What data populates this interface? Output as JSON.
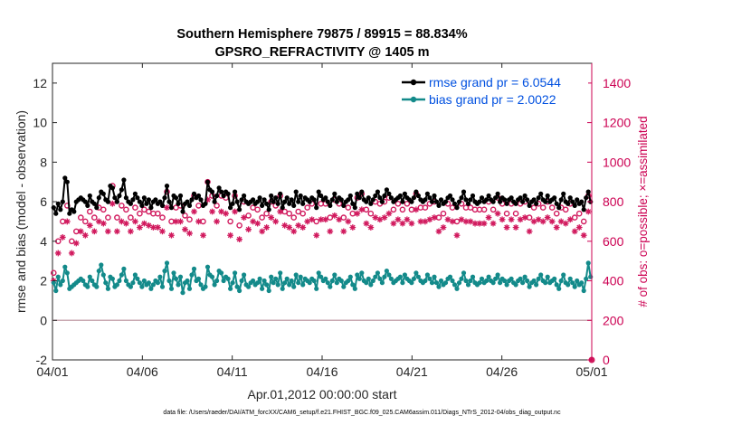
{
  "chart_data": {
    "type": "line",
    "title": "Southern Hemisphere 79875 / 89915 = 88.834%",
    "subtitle": "GPSRO_REFRACTIVITY @ 1405 m",
    "xlabel": "Apr.01,2012 00:00:00 start",
    "ylabel": "rmse and bias (model - observation)",
    "y2label": "# of obs: o=possible; ×=assimilated",
    "footnote": "data file: /Users/raeder/DAI/ATM_forcXX/CAM6_setup/f.e21.FHIST_BGC.f09_025.CAM6assim.011/Diags_NTrS_2012-04/obs_diag_output.nc",
    "xlim": [
      0,
      30
    ],
    "ylim": [
      -2,
      13
    ],
    "y2lim": [
      0,
      1500
    ],
    "x_tick_values": [
      0,
      5,
      10,
      15,
      20,
      25,
      30
    ],
    "x_tick_labels": [
      "04/01",
      "04/06",
      "04/11",
      "04/16",
      "04/21",
      "04/26",
      "05/01"
    ],
    "y_ticks": [
      -2,
      0,
      2,
      4,
      6,
      8,
      10,
      12
    ],
    "y2_ticks": [
      0,
      200,
      400,
      600,
      800,
      1000,
      1200,
      1400
    ],
    "zero_line": 0,
    "colors": {
      "rmse": "#000000",
      "bias": "#138a8a",
      "obs": "#d11a5e",
      "zero": "#c8a8b0",
      "legend_text": "#0050e0",
      "right_axis": "#cc0052"
    },
    "legend": [
      {
        "label": "rmse grand pr = 6.0544",
        "color": "#000000"
      },
      {
        "label": "bias grand pr = 2.0022",
        "color": "#138a8a"
      }
    ],
    "series": [
      {
        "name": "rmse",
        "axis": "left",
        "values": [
          5.7,
          5.4,
          5.9,
          5.6,
          6.0,
          7.2,
          7.0,
          5.4,
          5.6,
          5.5,
          6.0,
          6.1,
          6.2,
          6.1,
          6.0,
          5.8,
          6.3,
          6.0,
          5.9,
          5.7,
          6.2,
          6.5,
          6.4,
          6.1,
          6.0,
          6.8,
          6.7,
          6.2,
          6.0,
          6.3,
          6.6,
          7.1,
          6.2,
          6.0,
          5.9,
          6.1,
          6.4,
          6.2,
          6.0,
          5.8,
          6.2,
          5.9,
          6.1,
          5.7,
          6.0,
          6.1,
          5.9,
          6.0,
          5.8,
          6.2,
          6.8,
          6.0,
          5.7,
          6.3,
          6.2,
          5.9,
          6.3,
          5.5,
          5.9,
          6.0,
          5.8,
          6.1,
          6.4,
          6.2,
          6.3,
          6.1,
          5.8,
          5.9,
          7.0,
          6.6,
          6.5,
          6.0,
          6.3,
          6.7,
          6.5,
          6.3,
          6.5,
          6.4,
          5.7,
          5.9,
          6.5,
          6.0,
          5.6,
          6.1,
          6.3,
          6.0,
          5.9,
          6.0,
          6.1,
          5.9,
          6.0,
          6.2,
          5.8,
          6.1,
          5.9,
          5.6,
          6.3,
          6.0,
          6.2,
          5.9,
          6.4,
          5.7,
          6.0,
          6.2,
          5.9,
          6.1,
          5.8,
          6.5,
          6.0,
          6.3,
          5.9,
          6.2,
          6.1,
          6.0,
          6.2,
          6.1,
          5.7,
          6.5,
          6.3,
          6.1,
          6.2,
          6.0,
          5.8,
          6.1,
          6.4,
          6.0,
          6.2,
          6.1,
          5.8,
          6.0,
          6.1,
          6.3,
          5.9,
          5.7,
          6.4,
          6.2,
          6.5,
          6.1,
          6.0,
          6.2,
          5.9,
          6.1,
          6.3,
          6.5,
          6.2,
          6.0,
          6.3,
          6.6,
          6.4,
          6.2,
          6.0,
          6.1,
          6.2,
          6.3,
          6.0,
          6.4,
          6.2,
          6.1,
          6.0,
          6.2,
          6.5,
          6.3,
          6.1,
          6.0,
          6.1,
          6.4,
          6.2,
          6.0,
          6.3,
          6.0,
          5.8,
          6.1,
          5.9,
          6.0,
          6.2,
          6.3,
          6.1,
          5.9,
          5.7,
          6.0,
          6.2,
          6.5,
          6.1,
          5.9,
          6.1,
          6.3,
          6.0,
          5.9,
          6.0,
          6.2,
          6.0,
          6.1,
          6.3,
          6.1,
          6.0,
          6.2,
          6.4,
          6.0,
          6.2,
          6.1,
          5.9,
          6.1,
          6.2,
          6.0,
          5.9,
          6.1,
          6.2,
          6.0,
          6.3,
          6.1,
          5.8,
          6.0,
          6.1,
          5.9,
          6.2,
          6.4,
          6.1,
          6.0,
          6.3,
          6.0,
          6.1,
          6.2,
          5.9,
          5.7,
          6.1,
          6.4,
          6.0,
          5.9,
          6.2,
          6.0,
          5.8,
          6.1,
          5.9,
          6.0,
          5.6,
          6.2,
          6.5,
          6.0
        ]
      },
      {
        "name": "bias",
        "axis": "left",
        "values": [
          1.9,
          1.5,
          2.2,
          1.8,
          2.0,
          2.7,
          2.4,
          1.6,
          1.7,
          1.8,
          1.9,
          2.0,
          2.1,
          2.0,
          1.8,
          1.7,
          2.2,
          2.0,
          1.8,
          1.7,
          2.5,
          2.8,
          2.3,
          1.9,
          1.6,
          2.2,
          2.1,
          1.7,
          1.8,
          2.0,
          2.3,
          2.6,
          2.0,
          1.8,
          1.7,
          1.9,
          2.3,
          2.1,
          1.9,
          1.7,
          2.0,
          1.8,
          1.9,
          1.6,
          1.8,
          2.0,
          1.9,
          2.2,
          1.7,
          2.5,
          2.9,
          2.0,
          1.6,
          2.4,
          2.1,
          1.8,
          2.2,
          1.4,
          1.9,
          2.0,
          1.6,
          2.3,
          2.6,
          2.0,
          2.1,
          1.8,
          1.6,
          1.7,
          2.7,
          2.3,
          2.2,
          1.8,
          2.0,
          2.5,
          2.4,
          2.0,
          2.2,
          2.1,
          1.6,
          1.9,
          2.4,
          1.7,
          1.5,
          2.0,
          2.3,
          1.8,
          1.7,
          1.9,
          2.0,
          1.8,
          1.9,
          2.1,
          1.6,
          2.0,
          1.8,
          1.5,
          2.2,
          1.9,
          2.1,
          1.8,
          2.4,
          1.6,
          1.9,
          2.1,
          1.8,
          2.0,
          1.7,
          2.3,
          1.9,
          2.2,
          1.8,
          2.1,
          2.0,
          1.9,
          2.1,
          2.0,
          1.6,
          2.4,
          2.2,
          2.0,
          2.1,
          1.9,
          1.7,
          2.0,
          2.3,
          1.9,
          2.1,
          2.0,
          1.7,
          1.9,
          2.0,
          2.2,
          1.8,
          1.6,
          2.3,
          2.1,
          2.4,
          2.0,
          1.9,
          2.1,
          1.8,
          2.0,
          2.2,
          2.4,
          2.1,
          1.9,
          2.2,
          2.5,
          2.3,
          2.1,
          1.9,
          2.0,
          2.1,
          2.2,
          1.9,
          2.3,
          2.1,
          2.0,
          1.9,
          2.1,
          2.4,
          2.2,
          2.0,
          1.9,
          2.0,
          2.3,
          2.1,
          1.9,
          2.2,
          1.9,
          1.7,
          2.0,
          1.8,
          1.9,
          2.1,
          2.2,
          2.0,
          1.8,
          1.6,
          1.9,
          2.1,
          2.4,
          2.0,
          1.8,
          2.0,
          2.2,
          1.9,
          1.8,
          1.9,
          2.1,
          1.9,
          2.0,
          2.2,
          2.0,
          1.9,
          2.1,
          2.3,
          1.9,
          2.1,
          2.0,
          1.8,
          2.0,
          2.1,
          1.9,
          1.8,
          2.0,
          2.1,
          1.9,
          2.2,
          2.0,
          1.7,
          1.9,
          2.0,
          1.8,
          2.1,
          2.3,
          2.0,
          1.9,
          2.2,
          1.9,
          2.0,
          2.1,
          1.8,
          1.6,
          2.0,
          2.3,
          1.9,
          1.8,
          2.1,
          1.9,
          1.7,
          2.0,
          1.8,
          1.9,
          1.5,
          2.1,
          2.9,
          2.2
        ]
      },
      {
        "name": "obs possible",
        "axis": "right",
        "marker": "o",
        "values": [
          440,
          510,
          600,
          640,
          700,
          810,
          780,
          520,
          600,
          620,
          650,
          700,
          720,
          740,
          700,
          680,
          750,
          730,
          720,
          700,
          770,
          790,
          760,
          740,
          720,
          930,
          880,
          700,
          720,
          740,
          780,
          860,
          760,
          730,
          720,
          740,
          770,
          760,
          740,
          720,
          760,
          730,
          750,
          710,
          740,
          760,
          740,
          760,
          720,
          800,
          850,
          760,
          700,
          790,
          770,
          740,
          780,
          680,
          730,
          750,
          710,
          770,
          830,
          770,
          780,
          740,
          700,
          720,
          900,
          840,
          830,
          750,
          780,
          860,
          830,
          780,
          820,
          800,
          700,
          740,
          830,
          740,
          680,
          760,
          800,
          750,
          730,
          750,
          770,
          740,
          760,
          790,
          720,
          770,
          740,
          690,
          800,
          760,
          780,
          740,
          830,
          710,
          750,
          790,
          740,
          770,
          720,
          830,
          750,
          800,
          740,
          790,
          770,
          760,
          790,
          770,
          700,
          830,
          790,
          770,
          790,
          760,
          720,
          770,
          810,
          760,
          790,
          770,
          720,
          760,
          770,
          800,
          740,
          690,
          820,
          790,
          840,
          770,
          760,
          790,
          740,
          770,
          800,
          840,
          790,
          760,
          800,
          850,
          820,
          790,
          760,
          770,
          790,
          800,
          760,
          820,
          790,
          770,
          760,
          790,
          840,
          800,
          770,
          760,
          770,
          820,
          790,
          760,
          800,
          760,
          720,
          770,
          740,
          760,
          790,
          800,
          770,
          740,
          700,
          760,
          790,
          840,
          770,
          740,
          770,
          800,
          760,
          740,
          760,
          790,
          760,
          770,
          800,
          770,
          760,
          790,
          820,
          760,
          790,
          770,
          740,
          770,
          790,
          760,
          740,
          770,
          790,
          760,
          800,
          770,
          720,
          760,
          770,
          740,
          790,
          820,
          770,
          760,
          800,
          760,
          770,
          790,
          740,
          700,
          770,
          820,
          760,
          740,
          790,
          760,
          720,
          770,
          740,
          760,
          700,
          790,
          830,
          780
        ]
      },
      {
        "name": "obs assimilated",
        "axis": "right",
        "marker": "*",
        "values": [
          400,
          460,
          540,
          580,
          620,
          720,
          700,
          460,
          540,
          560,
          590,
          630,
          650,
          670,
          630,
          610,
          680,
          660,
          650,
          630,
          700,
          720,
          690,
          670,
          650,
          840,
          790,
          630,
          650,
          670,
          700,
          770,
          690,
          660,
          650,
          670,
          700,
          690,
          670,
          650,
          690,
          660,
          680,
          640,
          670,
          690,
          670,
          690,
          650,
          720,
          770,
          690,
          630,
          710,
          700,
          670,
          700,
          610,
          660,
          680,
          640,
          700,
          750,
          700,
          700,
          670,
          630,
          650,
          810,
          760,
          750,
          680,
          700,
          780,
          750,
          700,
          740,
          720,
          630,
          670,
          750,
          670,
          610,
          690,
          720,
          680,
          660,
          680,
          700,
          670,
          690,
          710,
          650,
          700,
          670,
          620,
          720,
          690,
          700,
          670,
          750,
          640,
          680,
          710,
          670,
          700,
          650,
          750,
          680,
          720,
          670,
          710,
          700,
          690,
          710,
          700,
          630,
          750,
          710,
          700,
          710,
          690,
          650,
          700,
          730,
          690,
          710,
          700,
          650,
          690,
          700,
          720,
          670,
          620,
          740,
          710,
          760,
          700,
          690,
          710,
          670,
          700,
          720,
          760,
          710,
          690,
          720,
          770,
          740,
          710,
          690,
          700,
          710,
          720,
          690,
          740,
          710,
          700,
          690,
          710,
          760,
          720,
          700,
          690,
          700,
          740,
          710,
          690,
          720,
          690,
          650,
          700,
          670,
          690,
          710,
          720,
          700,
          670,
          630,
          690,
          710,
          760,
          700,
          670,
          700,
          720,
          690,
          670,
          690,
          710,
          690,
          700,
          720,
          700,
          690,
          710,
          740,
          690,
          710,
          700,
          670,
          700,
          710,
          690,
          670,
          700,
          710,
          690,
          720,
          700,
          650,
          690,
          700,
          670,
          710,
          740,
          700,
          690,
          720,
          690,
          700,
          710,
          670,
          630,
          700,
          740,
          690,
          670,
          710,
          690,
          650,
          700,
          670,
          690,
          630,
          710,
          750,
          700
        ]
      }
    ]
  }
}
